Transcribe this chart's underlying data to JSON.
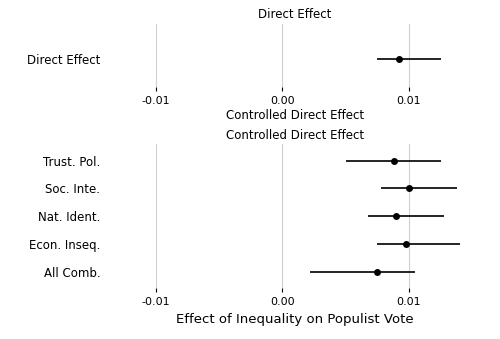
{
  "panel1": {
    "rows": [
      {
        "name": "Direct Effect",
        "est": 0.0092,
        "ci_lo": 0.0075,
        "ci_hi": 0.0125
      }
    ],
    "xlim": [
      -0.014,
      0.016
    ],
    "xticks": [
      -0.01,
      0.0,
      0.01
    ],
    "xticklabels": [
      "-0.01",
      "0.00",
      "0.01"
    ],
    "title": "Direct Effect",
    "xlabel": "Controlled Direct Effect"
  },
  "panel2": {
    "rows": [
      {
        "name": "Trust. Pol.",
        "est": 0.0088,
        "ci_lo": 0.005,
        "ci_hi": 0.0125
      },
      {
        "name": "Soc. Inte.",
        "est": 0.01,
        "ci_lo": 0.0078,
        "ci_hi": 0.0138
      },
      {
        "name": "Nat. Ident.",
        "est": 0.009,
        "ci_lo": 0.0068,
        "ci_hi": 0.0128
      },
      {
        "name": "Econ. Inseq.",
        "est": 0.0098,
        "ci_lo": 0.0075,
        "ci_hi": 0.014
      },
      {
        "name": "All Comb.",
        "est": 0.0075,
        "ci_lo": 0.0022,
        "ci_hi": 0.0105
      }
    ],
    "xlim": [
      -0.014,
      0.016
    ],
    "xticks": [
      -0.01,
      0.0,
      0.01
    ],
    "xticklabels": [
      "-0.01",
      "0.00",
      "0.01"
    ],
    "title": "Controlled Direct Effect",
    "xlabel": "Effect of Inequality on Populist Vote"
  },
  "dot_color": "#000000",
  "dot_size": 5,
  "line_color": "#000000",
  "line_width": 1.2,
  "bg_color": "#ffffff",
  "grid_color": "#d0d0d0",
  "title_fontsize": 8.5,
  "tick_fontsize": 8,
  "label_fontsize": 8.5,
  "xlabel_fontsize": 9.5,
  "p1_xlabel_fontsize": 8.5
}
